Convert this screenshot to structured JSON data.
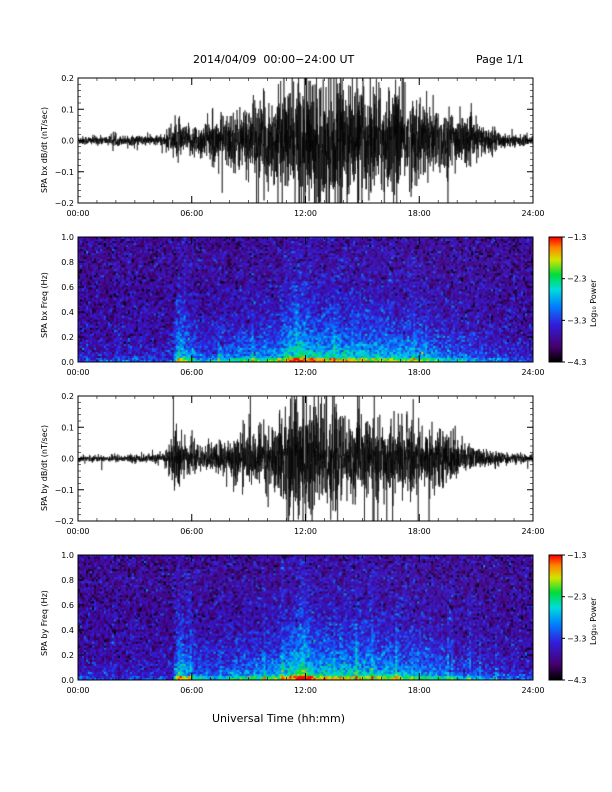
{
  "header": {
    "title": "2014/04/09  00:00−24:00 UT",
    "page": "Page 1/1"
  },
  "x_axis": {
    "title": "Universal Time (hh:mm)",
    "ticks": [
      "00:00",
      "06:00",
      "12:00",
      "18:00",
      "24:00"
    ],
    "range_hours": [
      0,
      24
    ]
  },
  "panels": [
    {
      "ylabel": "SPA bx dB/dt (nT/sec)",
      "kind": "waveform",
      "ylim": [
        -0.2,
        0.2
      ],
      "yticks": [
        "0.2",
        "0.1",
        "0.0",
        "−0.1",
        "−0.2"
      ]
    },
    {
      "ylabel": "SPA bx Freq (Hz)",
      "kind": "spectrogram",
      "ylim": [
        0.0,
        1.0
      ],
      "yticks": [
        "1.0",
        "0.8",
        "0.6",
        "0.4",
        "0.2",
        "0.0"
      ]
    },
    {
      "ylabel": "SPA by dB/dt (nT/sec)",
      "kind": "waveform",
      "ylim": [
        -0.2,
        0.2
      ],
      "yticks": [
        "0.2",
        "0.1",
        "0.0",
        "−0.1",
        "−0.2"
      ]
    },
    {
      "ylabel": "SPA by Freq (Hz)",
      "kind": "spectrogram",
      "ylim": [
        0.0,
        1.0
      ],
      "yticks": [
        "1.0",
        "0.8",
        "0.6",
        "0.4",
        "0.2",
        "0.0"
      ]
    }
  ],
  "colorbar": {
    "label": "Log₁₀ Power",
    "ticks": [
      "−1.3",
      "−2.3",
      "−3.3",
      "−4.3"
    ],
    "range": [
      -4.3,
      -1.3
    ]
  },
  "chart_data": [
    {
      "type": "line",
      "ylabel": "SPA bx dB/dt (nT/sec)",
      "ylim": [
        -0.2,
        0.2
      ],
      "xlim_hours": [
        0,
        24
      ],
      "envelope_amplitude": {
        "x_hours": [
          0,
          4.5,
          5.2,
          5.6,
          6.5,
          8.0,
          9.5,
          10.5,
          12.0,
          13.5,
          15.0,
          16.5,
          18.0,
          19.5,
          21.0,
          22.5,
          24
        ],
        "values": [
          0.012,
          0.015,
          0.06,
          0.04,
          0.05,
          0.08,
          0.11,
          0.13,
          0.2,
          0.18,
          0.16,
          0.15,
          0.12,
          0.09,
          0.05,
          0.02,
          0.012
        ]
      }
    },
    {
      "type": "heatmap",
      "ylabel": "SPA bx Freq (Hz)",
      "ylim": [
        0.0,
        1.0
      ],
      "xlim_hours": [
        0,
        24
      ],
      "color_range": [
        -4.3,
        -1.3
      ],
      "activity": {
        "x_hours": [
          0,
          5.0,
          5.3,
          6.5,
          8.0,
          10.5,
          11.5,
          12.5,
          15.0,
          18.0,
          20.0,
          24
        ],
        "values": [
          0.15,
          0.2,
          0.8,
          0.35,
          0.45,
          0.6,
          0.9,
          0.75,
          0.7,
          0.6,
          0.4,
          0.15
        ]
      }
    },
    {
      "type": "line",
      "ylabel": "SPA by dB/dt (nT/sec)",
      "ylim": [
        -0.2,
        0.2
      ],
      "xlim_hours": [
        0,
        24
      ],
      "envelope_amplitude": {
        "x_hours": [
          0,
          4.5,
          5.2,
          5.6,
          6.5,
          8.0,
          9.5,
          10.5,
          11.5,
          12.5,
          14.0,
          16.0,
          18.0,
          19.5,
          21.0,
          22.5,
          24
        ],
        "values": [
          0.008,
          0.012,
          0.1,
          0.05,
          0.03,
          0.06,
          0.08,
          0.1,
          0.2,
          0.2,
          0.12,
          0.1,
          0.1,
          0.07,
          0.03,
          0.015,
          0.01
        ]
      }
    },
    {
      "type": "heatmap",
      "ylabel": "SPA by Freq (Hz)",
      "ylim": [
        0.0,
        1.0
      ],
      "xlim_hours": [
        0,
        24
      ],
      "color_range": [
        -4.3,
        -1.3
      ],
      "activity": {
        "x_hours": [
          0,
          5.0,
          5.3,
          6.5,
          8.0,
          10.5,
          11.8,
          12.5,
          15.0,
          18.0,
          20.0,
          24
        ],
        "values": [
          0.15,
          0.2,
          0.8,
          0.35,
          0.45,
          0.6,
          0.95,
          0.75,
          0.7,
          0.6,
          0.4,
          0.15
        ]
      }
    }
  ]
}
